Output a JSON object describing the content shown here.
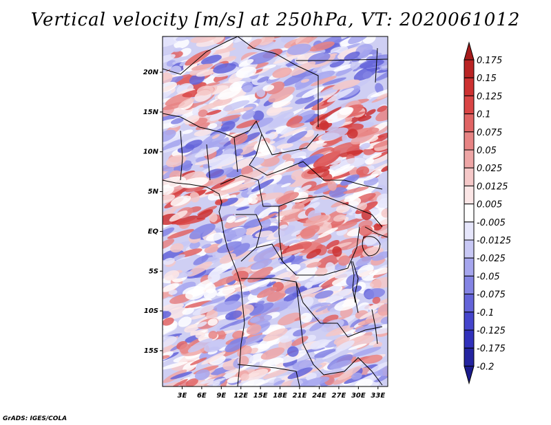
{
  "title": "Vertical velocity [m/s] at 250hPa, VT: 2020061012",
  "credit": "GrADS: IGES/COLA",
  "map": {
    "lat_labels": [
      "20N",
      "15N",
      "10N",
      "5N",
      "EQ",
      "5S",
      "10S",
      "15S"
    ],
    "lat_values": [
      20,
      15,
      10,
      5,
      0,
      -5,
      -10,
      -15
    ],
    "lon_labels": [
      "3E",
      "6E",
      "9E",
      "12E",
      "15E",
      "18E",
      "21E",
      "24E",
      "27E",
      "30E",
      "33E"
    ],
    "lon_values": [
      3,
      6,
      9,
      12,
      15,
      18,
      21,
      24,
      27,
      30,
      33
    ],
    "lat_range": [
      -19.5,
      24.5
    ],
    "lon_range": [
      0,
      34.5
    ]
  },
  "colorbar": {
    "labels": [
      "0.175",
      "0.15",
      "0.125",
      "0.1",
      "0.075",
      "0.05",
      "0.025",
      "0.0125",
      "0.005",
      "-0.005",
      "-0.0125",
      "-0.025",
      "-0.05",
      "-0.075",
      "-0.1",
      "-0.125",
      "-0.175",
      "-0.2"
    ],
    "colors": [
      "#a51b1b",
      "#b92424",
      "#cc3131",
      "#d94545",
      "#e06464",
      "#e78484",
      "#eea6a6",
      "#f5c8c8",
      "#fbe6e6",
      "#ffffff",
      "#e6e6fb",
      "#c8c8f5",
      "#a6a6ee",
      "#8484e4",
      "#6464d9",
      "#4545cc",
      "#3131bb",
      "#2424a0",
      "#1b1b8c"
    ]
  }
}
